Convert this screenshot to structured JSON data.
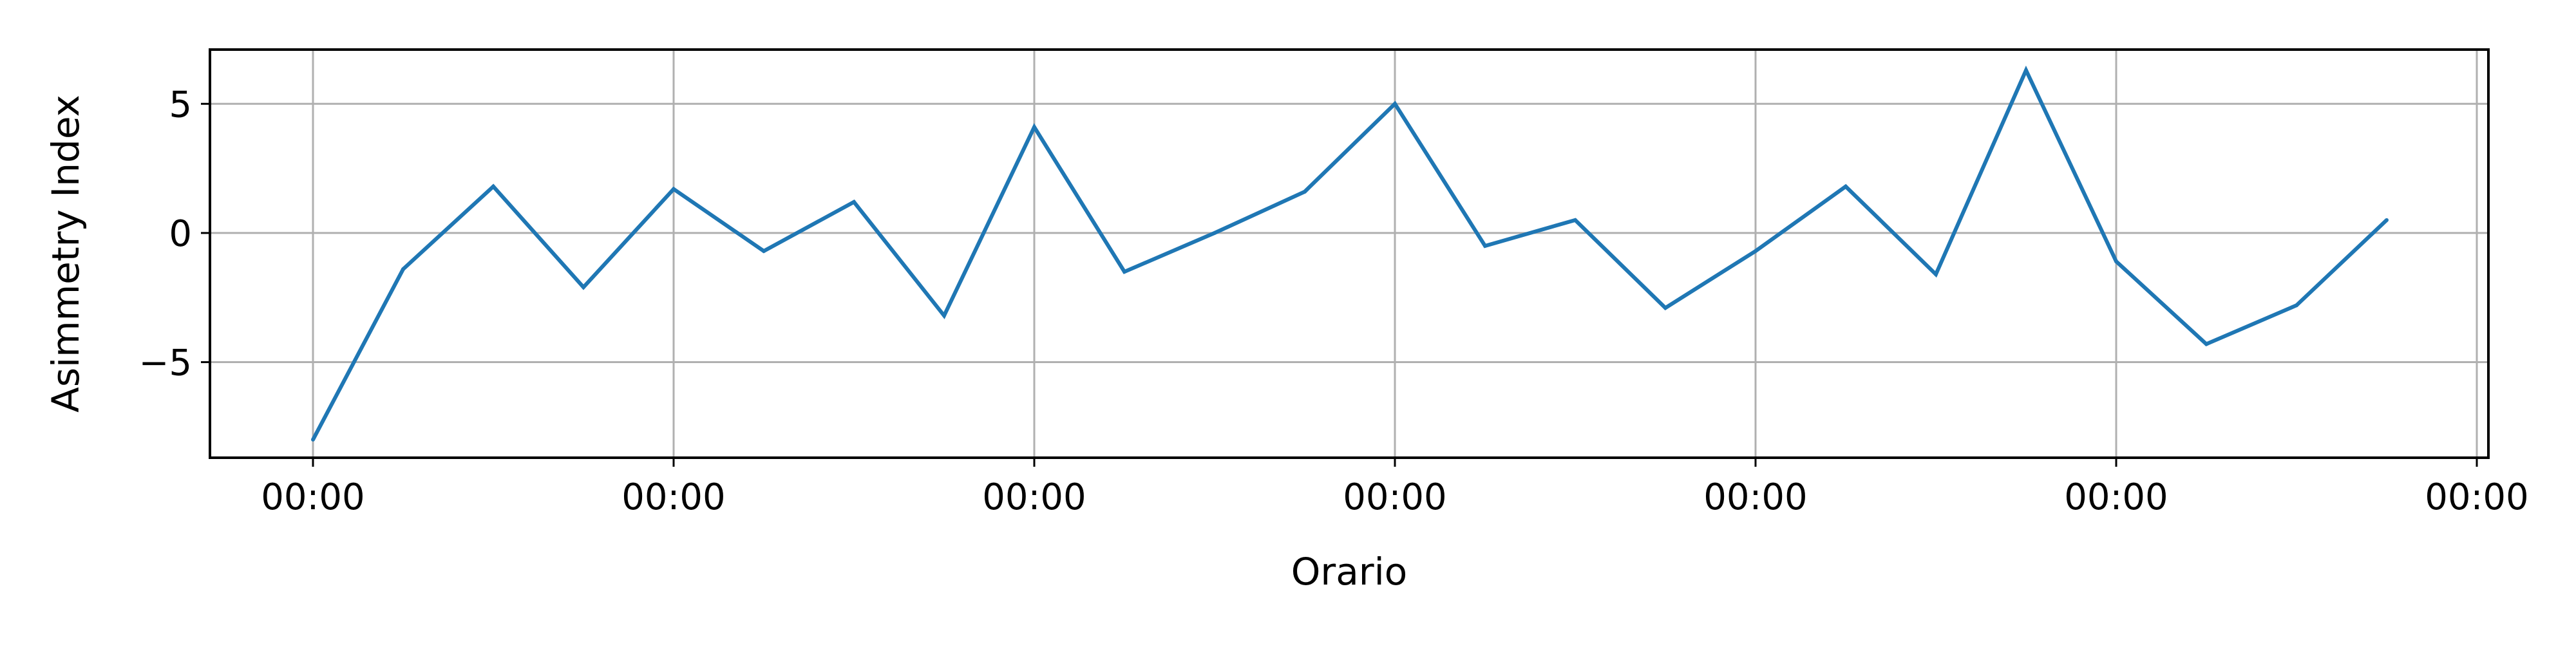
{
  "chart_data": {
    "type": "line",
    "title": "",
    "xlabel": "Orario",
    "ylabel": "Asimmetry Index",
    "x_tick_labels": [
      "00:00",
      "00:00",
      "00:00",
      "00:00",
      "00:00",
      "00:00",
      "00:00"
    ],
    "y_ticks": [
      -5,
      0,
      5
    ],
    "y_tick_labels": [
      "−5",
      "0",
      "5"
    ],
    "ylim": [
      -8.7,
      7.1
    ],
    "grid": true,
    "series": [
      {
        "color": "#1f77b4",
        "values": [
          -8.0,
          -1.4,
          1.8,
          -2.1,
          1.7,
          -0.7,
          1.2,
          -3.2,
          4.1,
          -1.5,
          0.0,
          1.6,
          5.0,
          -0.5,
          0.5,
          -2.9,
          -0.7,
          1.8,
          -1.6,
          6.3,
          -1.1,
          -4.3,
          -2.8,
          0.5
        ]
      }
    ]
  }
}
